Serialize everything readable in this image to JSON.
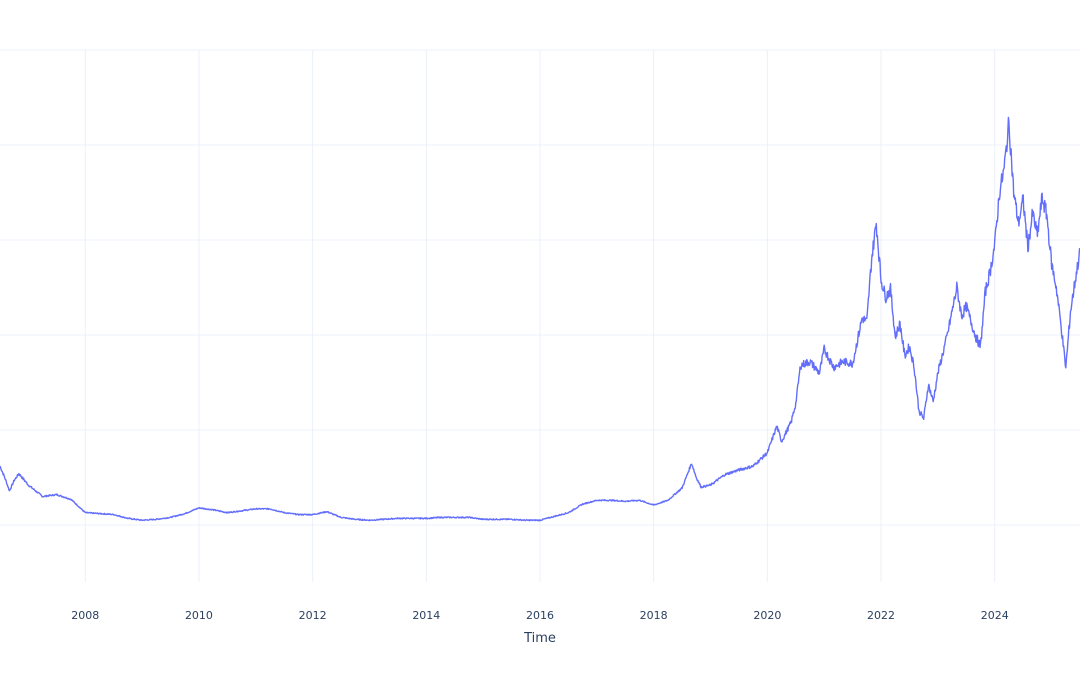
{
  "chart_data": {
    "type": "line",
    "xlabel": "Time",
    "ylabel": "",
    "grid": true,
    "line_color": "#636efa",
    "grid_color": "#ebf0f8",
    "tick_color": "#2a3f5f",
    "x_tick_labels": [
      "2008",
      "2010",
      "2012",
      "2014",
      "2016",
      "2018",
      "2020",
      "2022",
      "2024"
    ],
    "xlim": [
      "2006-07-01",
      "2025-07-01"
    ],
    "ylim": [
      -0.6,
      5.0
    ],
    "y_gridlines": [
      0,
      1,
      2,
      3,
      4,
      5
    ],
    "series": [
      {
        "points": [
          [
            "2006-07-01",
            0.62
          ],
          [
            "2006-08-01",
            0.5
          ],
          [
            "2006-09-01",
            0.36
          ],
          [
            "2006-10-01",
            0.47
          ],
          [
            "2006-11-01",
            0.54
          ],
          [
            "2007-01-01",
            0.42
          ],
          [
            "2007-04-01",
            0.3
          ],
          [
            "2007-07-01",
            0.32
          ],
          [
            "2007-10-01",
            0.27
          ],
          [
            "2008-01-01",
            0.13
          ],
          [
            "2008-04-01",
            0.12
          ],
          [
            "2008-07-01",
            0.11
          ],
          [
            "2008-10-01",
            0.07
          ],
          [
            "2009-01-01",
            0.05
          ],
          [
            "2009-04-01",
            0.06
          ],
          [
            "2009-07-01",
            0.08
          ],
          [
            "2009-10-01",
            0.12
          ],
          [
            "2010-01-01",
            0.18
          ],
          [
            "2010-04-01",
            0.16
          ],
          [
            "2010-07-01",
            0.13
          ],
          [
            "2010-10-01",
            0.15
          ],
          [
            "2011-01-01",
            0.17
          ],
          [
            "2011-04-01",
            0.17
          ],
          [
            "2011-07-01",
            0.13
          ],
          [
            "2011-10-01",
            0.11
          ],
          [
            "2012-01-01",
            0.11
          ],
          [
            "2012-04-01",
            0.14
          ],
          [
            "2012-07-01",
            0.08
          ],
          [
            "2012-10-01",
            0.06
          ],
          [
            "2013-01-01",
            0.05
          ],
          [
            "2013-04-01",
            0.06
          ],
          [
            "2013-07-01",
            0.07
          ],
          [
            "2013-10-01",
            0.07
          ],
          [
            "2014-01-01",
            0.07
          ],
          [
            "2014-04-01",
            0.08
          ],
          [
            "2014-07-01",
            0.08
          ],
          [
            "2014-10-01",
            0.08
          ],
          [
            "2015-01-01",
            0.06
          ],
          [
            "2015-04-01",
            0.06
          ],
          [
            "2015-07-01",
            0.06
          ],
          [
            "2015-10-01",
            0.05
          ],
          [
            "2016-01-01",
            0.05
          ],
          [
            "2016-04-01",
            0.09
          ],
          [
            "2016-07-01",
            0.13
          ],
          [
            "2016-10-01",
            0.22
          ],
          [
            "2017-01-01",
            0.26
          ],
          [
            "2017-04-01",
            0.26
          ],
          [
            "2017-07-01",
            0.25
          ],
          [
            "2017-10-01",
            0.26
          ],
          [
            "2018-01-01",
            0.21
          ],
          [
            "2018-04-01",
            0.26
          ],
          [
            "2018-07-01",
            0.39
          ],
          [
            "2018-09-01",
            0.65
          ],
          [
            "2018-10-01",
            0.5
          ],
          [
            "2018-11-01",
            0.4
          ],
          [
            "2019-01-01",
            0.42
          ],
          [
            "2019-04-01",
            0.53
          ],
          [
            "2019-07-01",
            0.58
          ],
          [
            "2019-10-01",
            0.62
          ],
          [
            "2020-01-01",
            0.76
          ],
          [
            "2020-03-01",
            1.04
          ],
          [
            "2020-04-01",
            0.88
          ],
          [
            "2020-06-01",
            1.08
          ],
          [
            "2020-07-01",
            1.28
          ],
          [
            "2020-08-01",
            1.68
          ],
          [
            "2020-10-01",
            1.72
          ],
          [
            "2020-12-01",
            1.6
          ],
          [
            "2021-01-01",
            1.85
          ],
          [
            "2021-03-01",
            1.66
          ],
          [
            "2021-05-01",
            1.72
          ],
          [
            "2021-07-01",
            1.7
          ],
          [
            "2021-09-01",
            2.18
          ],
          [
            "2021-10-01",
            2.14
          ],
          [
            "2021-11-01",
            2.8
          ],
          [
            "2021-12-01",
            3.18
          ],
          [
            "2022-01-01",
            2.58
          ],
          [
            "2022-02-01",
            2.4
          ],
          [
            "2022-03-01",
            2.48
          ],
          [
            "2022-04-01",
            1.98
          ],
          [
            "2022-05-01",
            2.12
          ],
          [
            "2022-06-01",
            1.78
          ],
          [
            "2022-07-01",
            1.88
          ],
          [
            "2022-08-01",
            1.66
          ],
          [
            "2022-09-01",
            1.2
          ],
          [
            "2022-10-01",
            1.12
          ],
          [
            "2022-11-01",
            1.48
          ],
          [
            "2022-12-01",
            1.3
          ],
          [
            "2023-01-01",
            1.6
          ],
          [
            "2023-03-01",
            2.0
          ],
          [
            "2023-05-01",
            2.5
          ],
          [
            "2023-06-01",
            2.2
          ],
          [
            "2023-07-01",
            2.3
          ],
          [
            "2023-09-01",
            1.98
          ],
          [
            "2023-10-01",
            1.88
          ],
          [
            "2023-11-01",
            2.45
          ],
          [
            "2023-12-01",
            2.66
          ],
          [
            "2024-01-01",
            2.95
          ],
          [
            "2024-02-01",
            3.5
          ],
          [
            "2024-03-01",
            3.75
          ],
          [
            "2024-04-01",
            4.24
          ],
          [
            "2024-05-01",
            3.5
          ],
          [
            "2024-06-01",
            3.18
          ],
          [
            "2024-07-01",
            3.42
          ],
          [
            "2024-08-01",
            2.92
          ],
          [
            "2024-09-01",
            3.28
          ],
          [
            "2024-10-01",
            3.05
          ],
          [
            "2024-11-01",
            3.45
          ],
          [
            "2024-12-01",
            3.26
          ],
          [
            "2025-01-01",
            2.75
          ],
          [
            "2025-02-01",
            2.5
          ],
          [
            "2025-03-01",
            2.1
          ],
          [
            "2025-04-01",
            1.65
          ],
          [
            "2025-05-01",
            2.25
          ],
          [
            "2025-06-01",
            2.58
          ],
          [
            "2025-07-01",
            2.88
          ]
        ]
      }
    ]
  }
}
